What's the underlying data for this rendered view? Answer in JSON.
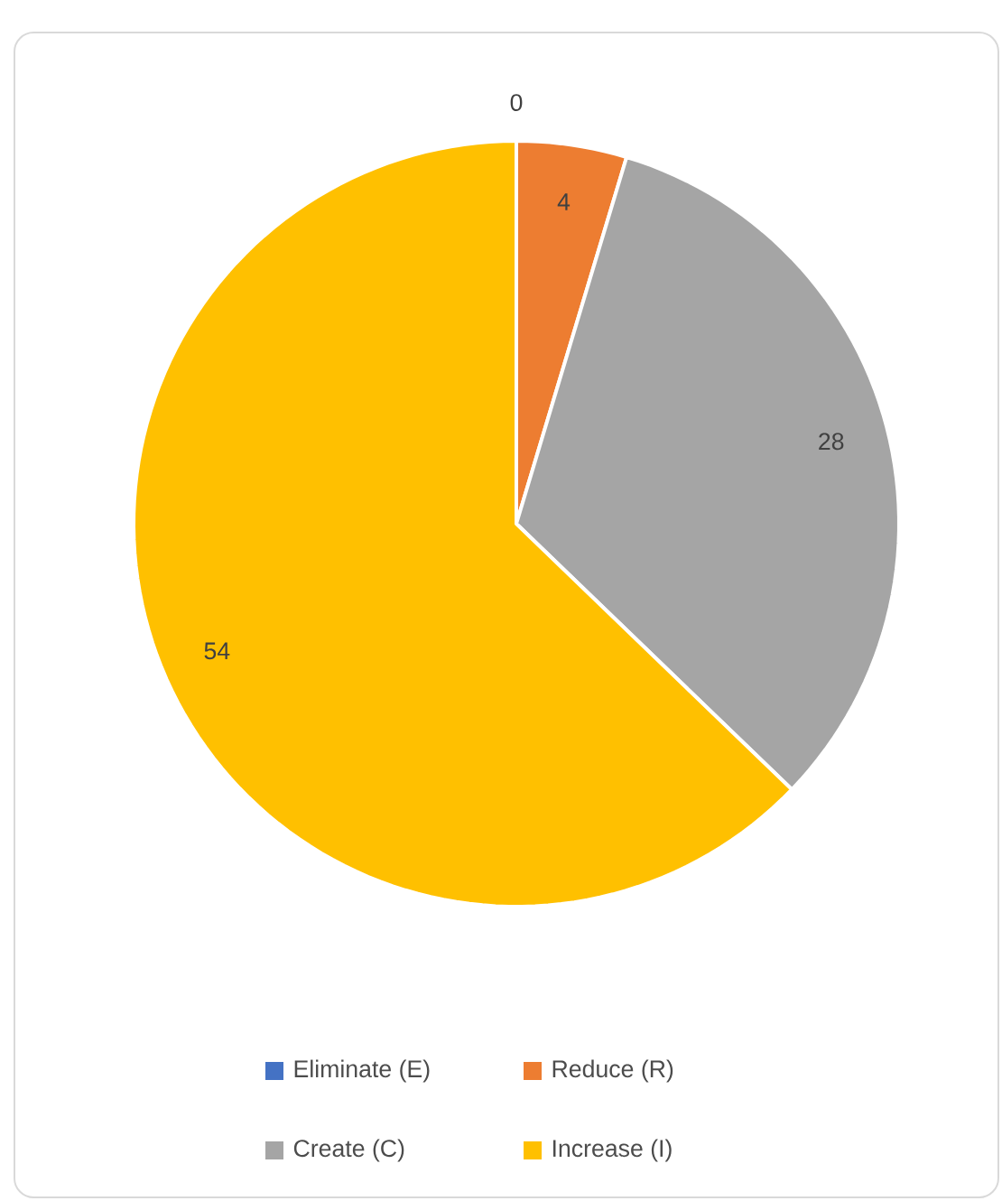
{
  "chart_data": {
    "type": "pie",
    "categories": [
      "Eliminate (E)",
      "Reduce (R)",
      "Create (C)",
      "Increase (I)"
    ],
    "values": [
      0,
      4,
      28,
      54
    ],
    "colors": [
      "#4472c4",
      "#ed7d31",
      "#a5a5a5",
      "#ffc000"
    ],
    "value_labels": [
      "0",
      "4",
      "28",
      "54"
    ],
    "legend": "bottom"
  }
}
